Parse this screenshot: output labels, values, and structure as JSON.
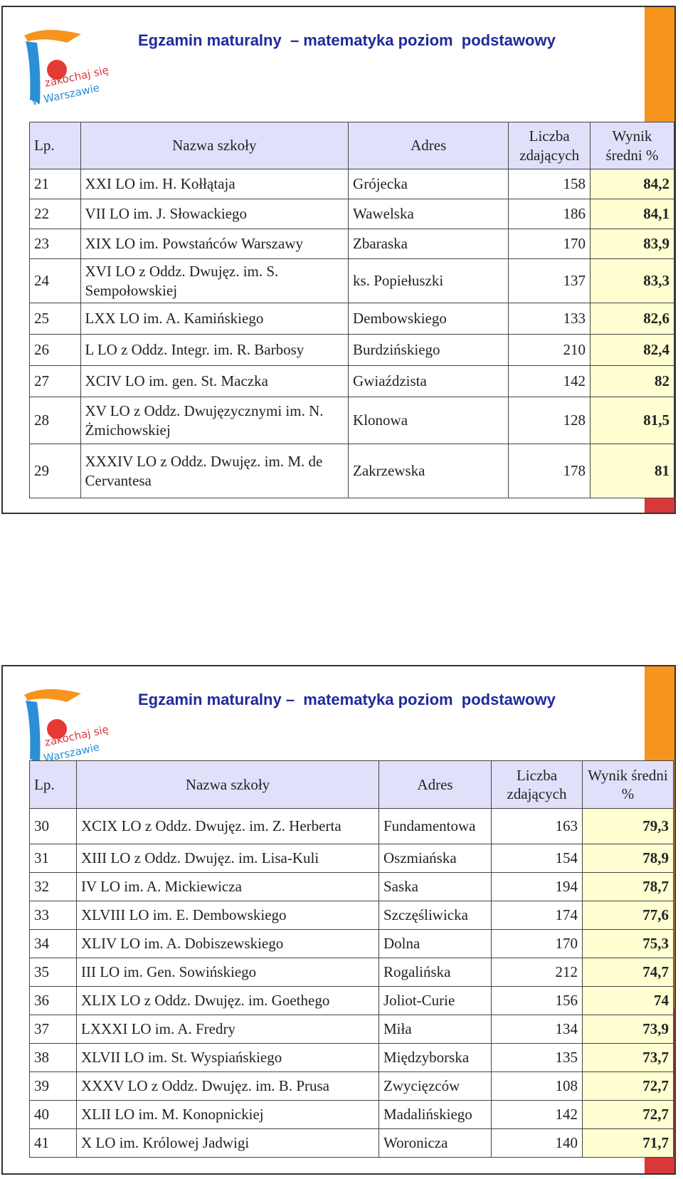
{
  "slides": [
    {
      "title": "Egzamin maturalny  – matematyka poziom  podstawowy",
      "logo": [
        "zakochaj się",
        "w Warszawie"
      ],
      "table": {
        "header": [
          "Lp.",
          "Nazwa szkoły",
          "Adres",
          "Liczba zdających",
          "Wynik średni %"
        ],
        "rows": [
          [
            "21",
            "XXI LO im. H. Kołłątaja",
            "Grójecka",
            "158",
            "84,2"
          ],
          [
            "22",
            "VII LO im. J. Słowackiego",
            "Wawelska",
            "186",
            "84,1"
          ],
          [
            "23",
            "XIX LO im. Powstańców Warszawy",
            "Zbaraska",
            "170",
            "83,9"
          ],
          [
            "24",
            "XVI LO z Oddz. Dwujęz. im. S. Sempołowskiej",
            "ks. Popiełuszki",
            "137",
            "83,3"
          ],
          [
            "25",
            "LXX LO  im. A.  Kamińskiego",
            "Dembowskiego",
            "133",
            "82,6"
          ],
          [
            "26",
            "L LO z Oddz. Integr. im. R. Barbosy",
            "Burdzińskiego",
            "210",
            "82,4"
          ],
          [
            "27",
            "XCIV LO im. gen. St. Maczka",
            "Gwiaździsta",
            "142",
            "82"
          ],
          [
            "28",
            "XV LO z Oddz. Dwujęzycznymi im. N. Żmichowskiej",
            "Klonowa",
            "128",
            "81,5"
          ],
          [
            "29",
            "XXXIV LO z Oddz. Dwujęz. im. M. de Cervantesa",
            "Zakrzewska",
            "178",
            "81"
          ]
        ]
      }
    },
    {
      "title": "Egzamin maturalny –  matematyka poziom  podstawowy",
      "logo": [
        "zakochaj się",
        "w Warszawie"
      ],
      "table": {
        "header": [
          "Lp.",
          "Nazwa szkoły",
          "Adres",
          "Liczba zdających",
          "Wynik średni %"
        ],
        "rows": [
          [
            "30",
            "XCIX LO z Oddz. Dwujęz. im. Z. Herberta",
            "Fundamentowa",
            "163",
            "79,3"
          ],
          [
            "31",
            "XIII LO z Oddz. Dwujęz. im. Lisa-Kuli",
            "Oszmiańska",
            "154",
            "78,9"
          ],
          [
            "32",
            "IV LO im. A. Mickiewicza",
            "Saska",
            "194",
            "78,7"
          ],
          [
            "33",
            "XLVIII LO im. E. Dembowskiego",
            "Szczęśliwicka",
            "174",
            "77,6"
          ],
          [
            "34",
            "XLIV LO im. A. Dobiszewskiego",
            "Dolna",
            "170",
            "75,3"
          ],
          [
            "35",
            "III LO im. Gen. Sowińskiego",
            "Rogalińska",
            "212",
            "74,7"
          ],
          [
            "36",
            "XLIX LO z Oddz. Dwujęz. im. Goethego",
            "Joliot-Curie",
            "156",
            "74"
          ],
          [
            "37",
            "LXXXI LO im. A.  Fredry",
            "Miła",
            "134",
            "73,9"
          ],
          [
            "38",
            "XLVII LO im. St. Wyspiańskiego",
            "Międzyborska",
            "135",
            "73,7"
          ],
          [
            "39",
            "XXXV LO z Oddz. Dwujęz. im. B. Prusa",
            "Zwycięzców",
            "108",
            "72,7"
          ],
          [
            "40",
            "XLII LO im. M. Konopnickiej",
            "Madalińskiego",
            "142",
            "72,7"
          ],
          [
            "41",
            "X LO im. Królowej Jadwigi",
            "Woronicza",
            "140",
            "71,7"
          ]
        ]
      }
    }
  ]
}
